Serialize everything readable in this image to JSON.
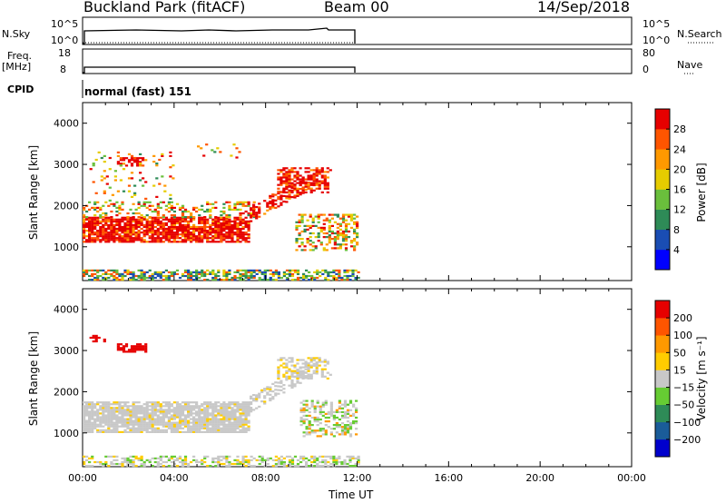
{
  "header": {
    "station": "Buckland Park (fitACF)",
    "beam": "Beam 00",
    "date": "14/Sep/2018"
  },
  "summary": {
    "nsky_label": "N.Sky",
    "nsky_ticks": [
      "10^5",
      "10^0"
    ],
    "nsky_right_ticks": [
      "10^5",
      "10^0"
    ],
    "nsearch_label": "N.Search",
    "freq_label": "Freq.",
    "freq_unit": "[MHz]",
    "freq_ticks": [
      "18",
      "8"
    ],
    "nave_label": "Nave",
    "nave_ticks": [
      "80",
      "0"
    ],
    "cpid_label": "CPID",
    "cpid_value": "normal (fast) 151"
  },
  "chart_data": [
    {
      "type": "heatmap",
      "title": "",
      "ylabel": "Slant Range [km]",
      "xlabel": "",
      "xlim_hours": [
        0,
        24
      ],
      "ylim": [
        180,
        4500
      ],
      "yticks": [
        "4000",
        "3000",
        "2000",
        "1000"
      ],
      "colorbar_label": "Power [dB]",
      "colorbar_ticks": [
        "28",
        "24",
        "20",
        "16",
        "12",
        "8",
        "4"
      ],
      "colorbar_colors": [
        "#0000ff",
        "#1a4db3",
        "#2e8b57",
        "#6abf3c",
        "#e6cc00",
        "#ff9900",
        "#ff5500",
        "#e60000"
      ]
    },
    {
      "type": "heatmap",
      "title": "",
      "ylabel": "Slant Range [km]",
      "xlabel": "Time UT",
      "xlim_hours": [
        0,
        24
      ],
      "ylim": [
        180,
        4500
      ],
      "yticks": [
        "4000",
        "3000",
        "2000",
        "1000"
      ],
      "xticks": [
        "00:00",
        "04:00",
        "08:00",
        "12:00",
        "16:00",
        "20:00",
        "00:00"
      ],
      "colorbar_label": "Velocity [m s⁻¹]",
      "colorbar_ticks": [
        "200",
        "100",
        "50",
        "15",
        "−15",
        "−50",
        "−100",
        "−200"
      ],
      "colorbar_colors": [
        "#0000cc",
        "#1a5c99",
        "#2e8b57",
        "#66cc33",
        "#c8c8c8",
        "#ffcc00",
        "#ff9900",
        "#ff5500",
        "#e60000"
      ]
    }
  ]
}
